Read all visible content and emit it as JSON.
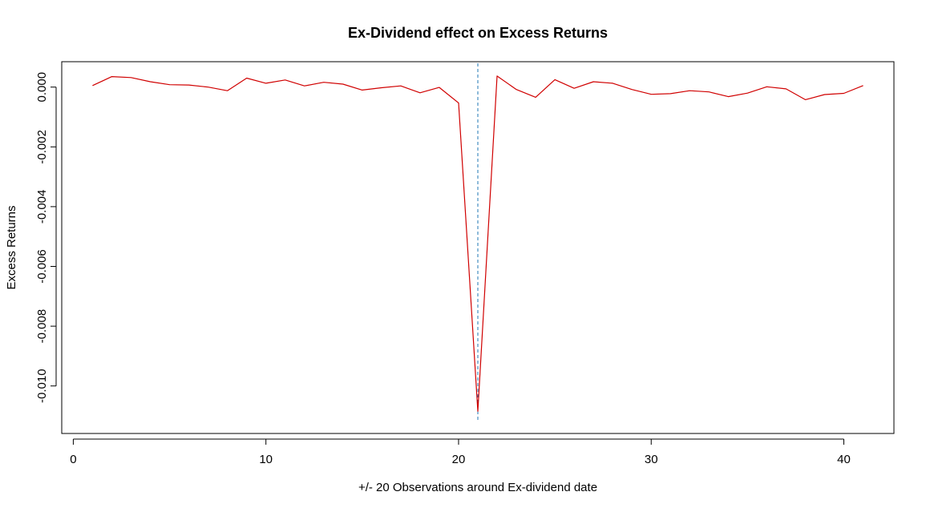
{
  "chart_data": {
    "type": "line",
    "title": "Ex-Dividend effect on Excess Returns",
    "xlabel": "+/- 20 Observations around Ex-dividend date",
    "ylabel": "Excess Returns",
    "xlim": [
      -0.6,
      42.6
    ],
    "ylim": [
      -0.01159,
      0.00085
    ],
    "x_ticks": [
      0,
      10,
      20,
      30,
      40
    ],
    "x_tick_labels": [
      "0",
      "10",
      "20",
      "30",
      "40"
    ],
    "y_ticks": [
      0.0,
      -0.002,
      -0.004,
      -0.006,
      -0.008,
      -0.01
    ],
    "y_tick_labels": [
      "0.000",
      "-0.002",
      "-0.004",
      "-0.006",
      "-0.008",
      "-0.010"
    ],
    "grid": false,
    "series": [
      {
        "color": "#d00000",
        "x": [
          1,
          2,
          3,
          4,
          5,
          6,
          7,
          8,
          9,
          10,
          11,
          12,
          13,
          14,
          15,
          16,
          17,
          18,
          19,
          20,
          21,
          22,
          23,
          24,
          25,
          26,
          27,
          28,
          29,
          30,
          31,
          32,
          33,
          34,
          35,
          36,
          37,
          38,
          39,
          40,
          41
        ],
        "y": [
          5e-05,
          0.00035,
          0.00032,
          0.00018,
          8e-05,
          7e-05,
          0.0,
          -0.00012,
          0.0003,
          0.00013,
          0.00024,
          4e-05,
          0.00016,
          0.0001,
          -0.0001,
          -2e-05,
          4e-05,
          -0.00019,
          -1e-05,
          -0.00053,
          -0.01085,
          0.00037,
          -8e-05,
          -0.00034,
          0.00025,
          -4e-05,
          0.00018,
          0.00013,
          -8e-05,
          -0.00024,
          -0.00022,
          -0.00012,
          -0.00016,
          -0.00032,
          -0.0002,
          1e-05,
          -6e-05,
          -0.00042,
          -0.00025,
          -0.00021,
          5e-05
        ]
      }
    ],
    "vline": {
      "x": 21,
      "color": "#1f77b4",
      "style": "dashed"
    }
  }
}
